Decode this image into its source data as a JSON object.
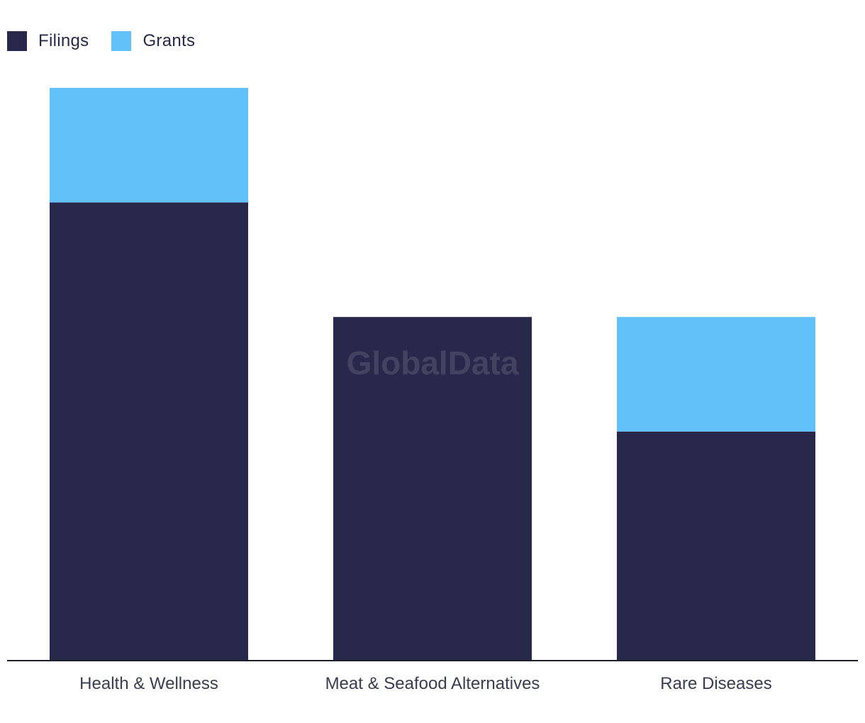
{
  "chart_data": {
    "type": "bar",
    "stacked": true,
    "categories": [
      "Health & Wellness",
      "Meat & Seafood Alternatives",
      "Rare Diseases"
    ],
    "series": [
      {
        "name": "Filings",
        "values": [
          4,
          3,
          2
        ],
        "color": "#27284a"
      },
      {
        "name": "Grants",
        "values": [
          1,
          0,
          1
        ],
        "color": "#62c1f8"
      }
    ],
    "ylim": [
      0,
      5
    ],
    "grid": false,
    "legend_position": "top-left",
    "title": "",
    "xlabel": "",
    "ylabel": ""
  },
  "watermark": "GlobalData"
}
